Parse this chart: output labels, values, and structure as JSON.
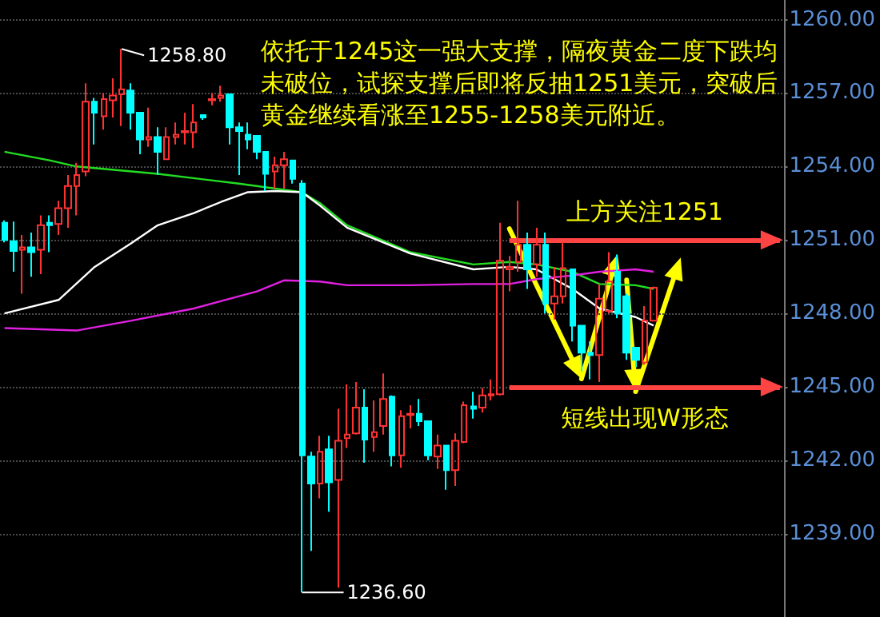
{
  "chart_data": {
    "type": "candlestick",
    "categories": [
      null,
      null,
      null,
      null,
      null,
      null,
      null,
      null,
      null,
      null,
      null,
      null,
      null,
      null,
      null,
      null,
      null,
      null,
      null,
      null,
      null,
      null,
      null,
      null,
      null,
      null,
      null,
      null,
      null,
      null,
      null,
      null,
      null,
      null,
      null,
      null,
      null,
      null,
      null,
      null,
      null,
      null,
      null,
      null,
      null,
      null,
      null,
      null,
      null,
      null,
      null,
      null,
      null,
      null,
      null,
      null,
      null,
      null,
      null,
      null,
      null,
      null,
      null,
      null,
      null,
      null,
      null,
      null,
      null,
      null,
      null,
      null,
      null,
      null,
      null,
      null,
      null,
      null,
      null,
      null,
      null,
      null,
      null,
      null,
      null,
      null,
      null
    ],
    "ohlc": [
      [
        1251.7,
        1251.8,
        1250.9,
        1251.0
      ],
      [
        1250.95,
        1251.75,
        1249.7,
        1250.55
      ],
      [
        1250.6,
        1251.2,
        1248.8,
        1250.7
      ],
      [
        1250.7,
        1251.3,
        1249.5,
        1250.5
      ],
      [
        1250.6,
        1252.0,
        1249.6,
        1251.6
      ],
      [
        1251.7,
        1252.0,
        1250.5,
        1251.6
      ],
      [
        1251.65,
        1252.6,
        1251.2,
        1252.3
      ],
      [
        1252.3,
        1253.65,
        1251.5,
        1253.2
      ],
      [
        1253.2,
        1254.15,
        1252.0,
        1253.65
      ],
      [
        1253.8,
        1257.4,
        1253.6,
        1256.65
      ],
      [
        1256.65,
        1256.8,
        1254.9,
        1256.2
      ],
      [
        1256.05,
        1257.0,
        1255.5,
        1256.75
      ],
      [
        1256.7,
        1257.6,
        1256.0,
        1256.9
      ],
      [
        1256.95,
        1258.8,
        1255.65,
        1257.15
      ],
      [
        1257.1,
        1257.4,
        1255.5,
        1256.2
      ],
      [
        1256.2,
        1256.2,
        1254.5,
        1255.1
      ],
      [
        1255.1,
        1256.4,
        1254.8,
        1255.2
      ],
      [
        1255.2,
        1255.6,
        1253.65,
        1254.6
      ],
      [
        1254.3,
        1255.6,
        1254.3,
        1255.2
      ],
      [
        1255.2,
        1255.8,
        1254.9,
        1255.3
      ],
      [
        1255.4,
        1256.2,
        1254.9,
        1255.45
      ],
      [
        1255.4,
        1256.55,
        1254.75,
        1255.8
      ],
      [
        1256.1,
        1256.1,
        1255.9,
        1256.0
      ],
      [
        1256.7,
        1257.0,
        1256.5,
        1256.75
      ],
      [
        1256.8,
        1257.3,
        1256.65,
        1256.9
      ],
      [
        1256.95,
        1256.95,
        1254.9,
        1255.6
      ],
      [
        1255.6,
        1255.8,
        1253.65,
        1255.45
      ],
      [
        1255.3,
        1255.8,
        1254.7,
        1255.1
      ],
      [
        1255.25,
        1255.25,
        1254.3,
        1254.6
      ],
      [
        1254.6,
        1254.6,
        1253.0,
        1253.7
      ],
      [
        1253.8,
        1254.4,
        1253.1,
        1254.05
      ],
      [
        1254.05,
        1254.6,
        1253.1,
        1254.3
      ],
      [
        1254.25,
        1254.25,
        1253.3,
        1253.5
      ],
      [
        1253.3,
        1253.45,
        1236.6,
        1242.2
      ],
      [
        1242.15,
        1242.35,
        1238.3,
        1241.05
      ],
      [
        1241.05,
        1243.0,
        1240.45,
        1242.35
      ],
      [
        1242.45,
        1243.0,
        1239.9,
        1241.1
      ],
      [
        1241.2,
        1244.1,
        1236.8,
        1242.8
      ],
      [
        1242.9,
        1245.1,
        1242.5,
        1243.05
      ],
      [
        1243.1,
        1245.2,
        1243.05,
        1244.15
      ],
      [
        1244.15,
        1244.9,
        1241.9,
        1242.85
      ],
      [
        1242.95,
        1244.45,
        1242.35,
        1243.15
      ],
      [
        1243.4,
        1245.55,
        1243.05,
        1244.5
      ],
      [
        1244.6,
        1244.65,
        1241.75,
        1242.2
      ],
      [
        1242.2,
        1244.05,
        1241.7,
        1243.8
      ],
      [
        1243.85,
        1244.25,
        1243.3,
        1243.9
      ],
      [
        1243.9,
        1244.5,
        1243.4,
        1243.6
      ],
      [
        1243.6,
        1243.6,
        1242.0,
        1242.2
      ],
      [
        1242.15,
        1243.05,
        1241.65,
        1242.6
      ],
      [
        1242.6,
        1242.6,
        1240.8,
        1241.6
      ],
      [
        1241.6,
        1243.1,
        1240.95,
        1242.8
      ],
      [
        1242.75,
        1244.4,
        1242.7,
        1244.25
      ],
      [
        1244.2,
        1244.8,
        1243.7,
        1244.1
      ],
      [
        1244.15,
        1244.95,
        1243.95,
        1244.65
      ],
      [
        1244.65,
        1245.3,
        1244.45,
        1244.7
      ],
      [
        1244.7,
        1251.7,
        1244.65,
        1250.15
      ],
      [
        1249.8,
        1250.35,
        1248.9,
        1249.9
      ],
      [
        1250.1,
        1252.6,
        1249.7,
        1250.8
      ],
      [
        1250.8,
        1251.3,
        1249.0,
        1249.8
      ],
      [
        1250.0,
        1251.5,
        1249.5,
        1250.8
      ],
      [
        1250.8,
        1251.3,
        1248.0,
        1248.4
      ],
      [
        1248.4,
        1249.9,
        1247.75,
        1248.7
      ],
      [
        1248.7,
        1250.9,
        1248.4,
        1249.85
      ],
      [
        1249.8,
        1249.8,
        1246.85,
        1247.5
      ],
      [
        1247.5,
        1247.5,
        1245.65,
        1246.4
      ],
      [
        1246.4,
        1246.85,
        1245.3,
        1246.3
      ],
      [
        1246.3,
        1249.2,
        1245.2,
        1248.6
      ],
      [
        1248.1,
        1250.5,
        1248.0,
        1249.3
      ],
      [
        1249.7,
        1250.4,
        1247.8,
        1248.0
      ],
      [
        1248.7,
        1248.8,
        1246.1,
        1246.4
      ],
      [
        1246.6,
        1246.6,
        1245.8,
        1246.1
      ],
      [
        1246.0,
        1248.3,
        1245.9,
        1247.7
      ],
      [
        1247.7,
        1249.1,
        1247.7,
        1249.05
      ],
      null,
      null,
      null,
      null,
      null,
      null,
      null,
      null,
      null,
      null,
      null,
      null,
      null,
      null
    ],
    "colors": [
      "#00ffff",
      "#00ffff",
      "#ff3232",
      "#00ffff",
      "#ff3232",
      "#00ffff",
      "#ff3232",
      "#ff3232",
      "#ff3232",
      "#ff3232",
      "#00ffff",
      "#ff3232",
      "#ff3232",
      "#ff3232",
      "#00ffff",
      "#00ffff",
      "#ff3232",
      "#00ffff",
      "#ff3232",
      "#ff3232",
      "#ff3232",
      "#ff3232",
      "#00ffff",
      "#ff3232",
      "#ff3232",
      "#00ffff",
      "#00ffff",
      "#00ffff",
      "#00ffff",
      "#00ffff",
      "#ff3232",
      "#ff3232",
      "#00ffff",
      "#00ffff",
      "#00ffff",
      "#ff3232",
      "#00ffff",
      "#ff3232",
      "#ff3232",
      "#ff3232",
      "#00ffff",
      "#ff3232",
      "#ff3232",
      "#00ffff",
      "#ff3232",
      "#ff3232",
      "#00ffff",
      "#00ffff",
      "#ff3232",
      "#00ffff",
      "#ff3232",
      "#ff3232",
      "#00ffff",
      "#ff3232",
      "#ff3232",
      "#ff3232",
      "#ff3232",
      "#ff3232",
      "#00ffff",
      "#ff3232",
      "#00ffff",
      "#ff3232",
      "#ff3232",
      "#00ffff",
      "#00ffff",
      "#00ffff",
      "#ff3232",
      "#ff3232",
      "#00ffff",
      "#00ffff",
      "#00ffff",
      "#ff3232",
      "#ff3232",
      null,
      null,
      null,
      null,
      null,
      null,
      null,
      null,
      null,
      null,
      null,
      null,
      null,
      null
    ],
    "series": [
      {
        "type": "line",
        "color": "#22dd22",
        "values": [
          1254.6,
          null,
          null,
          null,
          null,
          1254.25,
          null,
          null,
          1254.0,
          null,
          null,
          null,
          null,
          null,
          null,
          null,
          null,
          1253.7,
          null,
          null,
          null,
          null,
          null,
          null,
          null,
          null,
          1253.3,
          null,
          null,
          null,
          null,
          null,
          null,
          1252.95,
          null,
          1252.5,
          null,
          null,
          1251.6,
          null,
          null,
          null,
          null,
          null,
          null,
          1250.5,
          null,
          null,
          null,
          null,
          null,
          null,
          1250.0,
          null,
          null,
          null,
          1250.1,
          null,
          null,
          1250.0,
          null,
          null,
          null,
          1249.7,
          null,
          null,
          1249.2,
          null,
          null,
          null,
          1249.15,
          null,
          1249.0,
          null,
          null,
          null,
          null,
          null,
          null,
          null,
          null,
          null,
          null,
          null,
          null,
          null,
          null
        ]
      },
      {
        "type": "line",
        "color": "#ffffff",
        "values": [
          1248.0,
          null,
          null,
          null,
          null,
          null,
          1248.55,
          null,
          null,
          null,
          1249.9,
          null,
          null,
          null,
          1250.85,
          null,
          null,
          1251.6,
          null,
          null,
          null,
          1252.1,
          null,
          null,
          1252.55,
          null,
          null,
          1252.95,
          null,
          null,
          1253.0,
          null,
          null,
          1252.95,
          null,
          1252.4,
          null,
          null,
          1251.5,
          null,
          null,
          null,
          null,
          null,
          null,
          1250.45,
          null,
          null,
          null,
          null,
          null,
          null,
          1249.8,
          null,
          null,
          null,
          1249.9,
          null,
          null,
          1249.8,
          null,
          null,
          null,
          1249.0,
          null,
          null,
          1248.2,
          null,
          null,
          null,
          1247.85,
          null,
          1247.5,
          null,
          null,
          null,
          null,
          null,
          null,
          null,
          null,
          null,
          null,
          null,
          null,
          null,
          null
        ]
      },
      {
        "type": "line",
        "color": "#e020e0",
        "values": [
          1247.4,
          null,
          null,
          null,
          null,
          null,
          null,
          null,
          1247.3,
          null,
          null,
          null,
          null,
          null,
          1247.7,
          null,
          null,
          null,
          null,
          null,
          null,
          1248.2,
          null,
          null,
          null,
          null,
          null,
          null,
          1248.9,
          null,
          null,
          1249.35,
          null,
          null,
          null,
          1249.3,
          null,
          null,
          1249.15,
          null,
          null,
          null,
          null,
          null,
          null,
          1249.15,
          null,
          null,
          null,
          null,
          null,
          null,
          1249.2,
          null,
          null,
          null,
          1249.2,
          null,
          null,
          1249.4,
          null,
          null,
          null,
          1249.55,
          null,
          null,
          1249.7,
          null,
          null,
          null,
          1249.8,
          null,
          1249.7,
          null,
          null,
          null,
          null,
          null,
          null,
          null,
          null,
          null,
          null,
          null,
          null,
          null,
          null
        ]
      }
    ],
    "ylim": [
      1235.6,
      1260.8
    ],
    "yticks": [
      {
        "value": 1239,
        "label": "1239.00"
      },
      {
        "value": 1242,
        "label": "1242.00"
      },
      {
        "value": 1245,
        "label": "1245.00"
      },
      {
        "value": 1248,
        "label": "1248.00"
      },
      {
        "value": 1251,
        "label": "1251.00"
      },
      {
        "value": 1254,
        "label": "1254.00"
      },
      {
        "value": 1257,
        "label": "1257.00"
      },
      {
        "value": 1260,
        "label": "1260.00"
      }
    ],
    "grid": "y",
    "ref_lines": [
      {
        "axis": "y",
        "value": 1245,
        "label": "短线出现W形态",
        "color": "#ff4444"
      },
      {
        "axis": "y",
        "value": 1251,
        "label": "上方关注1251",
        "color": "#ff4444"
      }
    ],
    "annotations": [
      "依托于1245这一强大支撑，隔夜黄金二度下跌均未破位，试探支撑后即将反抽1251美元，突破后黄金继续看涨至1255-1258美元附近。",
      "1258.80",
      "1236.60"
    ]
  }
}
